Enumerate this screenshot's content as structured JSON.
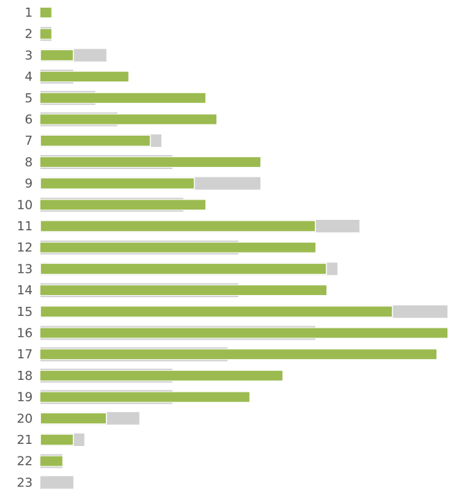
{
  "chart_data": {
    "type": "bar",
    "orientation": "horizontal",
    "categories": [
      "1",
      "2",
      "3",
      "4",
      "5",
      "6",
      "7",
      "8",
      "9",
      "10",
      "11",
      "12",
      "13",
      "14",
      "15",
      "16",
      "17",
      "18",
      "19",
      "20",
      "21",
      "22",
      "23"
    ],
    "series": [
      {
        "values": [
          1,
          1,
          3,
          8,
          15,
          16,
          10,
          20,
          14,
          15,
          25,
          25,
          26,
          26,
          32,
          37,
          36,
          22,
          19,
          6,
          3,
          2,
          0
        ]
      },
      {
        "values": [
          0,
          1,
          6,
          3,
          5,
          7,
          11,
          12,
          20,
          13,
          29,
          18,
          27,
          18,
          37,
          25,
          17,
          12,
          12,
          9,
          4,
          2,
          3
        ]
      }
    ],
    "xlim": [
      0,
      37
    ],
    "grid": false,
    "legend": "none",
    "colors": {
      "primary": "#9bbb50",
      "secondary": "#d0d0d0",
      "outline": "#ffffff"
    }
  }
}
